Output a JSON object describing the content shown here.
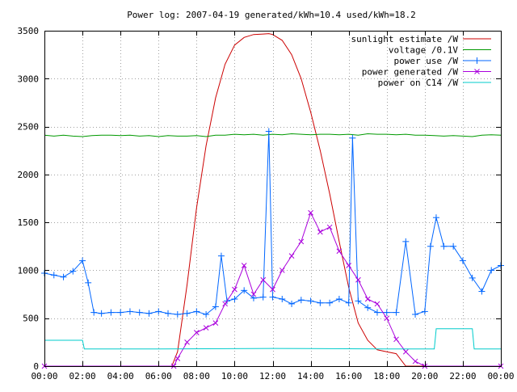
{
  "chart_data": {
    "type": "line",
    "title": "Power log: 2007-04-19 generated/kWh=10.4 used/kWh=18.2",
    "xlabel": "",
    "ylabel": "",
    "xlim": [
      0,
      24
    ],
    "ylim": [
      0,
      3500
    ],
    "grid": true,
    "legend_position": "top-right",
    "x_ticks": [
      {
        "v": 0,
        "label": "00:00"
      },
      {
        "v": 2,
        "label": "02:00"
      },
      {
        "v": 4,
        "label": "04:00"
      },
      {
        "v": 6,
        "label": "06:00"
      },
      {
        "v": 8,
        "label": "08:00"
      },
      {
        "v": 10,
        "label": "10:00"
      },
      {
        "v": 12,
        "label": "12:00"
      },
      {
        "v": 14,
        "label": "14:00"
      },
      {
        "v": 16,
        "label": "16:00"
      },
      {
        "v": 18,
        "label": "18:00"
      },
      {
        "v": 20,
        "label": "20:00"
      },
      {
        "v": 22,
        "label": "22:00"
      },
      {
        "v": 24,
        "label": "00:00"
      }
    ],
    "y_ticks": [
      {
        "v": 0,
        "label": "0"
      },
      {
        "v": 500,
        "label": "500"
      },
      {
        "v": 1000,
        "label": "1000"
      },
      {
        "v": 1500,
        "label": "1500"
      },
      {
        "v": 2000,
        "label": "2000"
      },
      {
        "v": 2500,
        "label": "2500"
      },
      {
        "v": 3000,
        "label": "3000"
      },
      {
        "v": 3500,
        "label": "3500"
      }
    ],
    "series": [
      {
        "name": "sunlight estimate /W",
        "color": "#cc0000",
        "marker": "none",
        "x": [
          0,
          6.7,
          7.0,
          7.5,
          8.0,
          8.5,
          9.0,
          9.5,
          10.0,
          10.5,
          11.0,
          11.5,
          11.8,
          12.0,
          12.5,
          13.0,
          13.5,
          14.0,
          14.5,
          15.0,
          15.5,
          16.0,
          16.5,
          17.0,
          17.5,
          18.0,
          18.5,
          19.0,
          24
        ],
        "y": [
          0,
          0,
          150,
          850,
          1650,
          2300,
          2800,
          3150,
          3350,
          3430,
          3460,
          3465,
          3470,
          3460,
          3400,
          3250,
          3000,
          2650,
          2250,
          1800,
          1300,
          820,
          450,
          270,
          170,
          150,
          130,
          0,
          0
        ]
      },
      {
        "name": "voltage /0.1V",
        "color": "#009900",
        "marker": "none",
        "x": [
          0,
          0.5,
          1.0,
          1.5,
          2.0,
          2.5,
          3.0,
          3.5,
          4.0,
          4.5,
          5.0,
          5.5,
          6.0,
          6.5,
          7.0,
          7.5,
          8.0,
          8.5,
          9.0,
          9.5,
          10.0,
          10.5,
          11.0,
          11.5,
          12.0,
          12.5,
          13.0,
          13.5,
          14.0,
          14.5,
          15.0,
          15.5,
          16.0,
          16.5,
          17.0,
          17.5,
          18.0,
          18.5,
          19.0,
          19.5,
          20.0,
          20.5,
          21.0,
          21.5,
          22.0,
          22.5,
          23.0,
          23.5,
          24.0
        ],
        "y": [
          2410,
          2400,
          2410,
          2400,
          2395,
          2405,
          2410,
          2410,
          2405,
          2410,
          2400,
          2405,
          2395,
          2405,
          2400,
          2400,
          2405,
          2395,
          2410,
          2410,
          2420,
          2415,
          2420,
          2410,
          2420,
          2415,
          2425,
          2420,
          2415,
          2420,
          2420,
          2415,
          2420,
          2410,
          2425,
          2420,
          2420,
          2415,
          2420,
          2410,
          2410,
          2405,
          2400,
          2405,
          2400,
          2395,
          2410,
          2415,
          2410
        ]
      },
      {
        "name": "power use /W",
        "color": "#0066ff",
        "marker": "plus",
        "x": [
          0,
          0.5,
          1.0,
          1.5,
          2.0,
          2.3,
          2.6,
          3.0,
          3.5,
          4.0,
          4.5,
          5.0,
          5.5,
          6.0,
          6.5,
          7.0,
          7.5,
          8.0,
          8.5,
          9.0,
          9.3,
          9.6,
          10.0,
          10.5,
          11.0,
          11.5,
          11.8,
          12.0,
          12.5,
          13.0,
          13.5,
          14.0,
          14.5,
          15.0,
          15.5,
          16.0,
          16.2,
          16.5,
          17.0,
          17.5,
          18.0,
          18.5,
          19.0,
          19.5,
          20.0,
          20.3,
          20.6,
          21.0,
          21.5,
          22.0,
          22.5,
          23.0,
          23.5,
          24.0
        ],
        "y": [
          970,
          950,
          930,
          990,
          1100,
          870,
          560,
          550,
          560,
          560,
          570,
          560,
          550,
          570,
          550,
          540,
          550,
          570,
          540,
          620,
          1150,
          680,
          700,
          790,
          710,
          720,
          2450,
          720,
          700,
          650,
          690,
          680,
          660,
          660,
          700,
          660,
          2380,
          680,
          610,
          560,
          560,
          560,
          1300,
          540,
          570,
          1250,
          1550,
          1250,
          1250,
          1100,
          920,
          780,
          1000,
          1050
        ]
      },
      {
        "name": "power generated /W",
        "color": "#aa00dd",
        "marker": "cross",
        "x": [
          0,
          6.8,
          7.0,
          7.5,
          8.0,
          8.5,
          9.0,
          9.5,
          10.0,
          10.5,
          11.0,
          11.5,
          12.0,
          12.5,
          13.0,
          13.5,
          14.0,
          14.5,
          15.0,
          15.5,
          16.0,
          16.5,
          17.0,
          17.5,
          18.0,
          18.5,
          19.0,
          19.5,
          20.0,
          24.0
        ],
        "y": [
          0,
          0,
          80,
          250,
          350,
          400,
          450,
          650,
          800,
          1050,
          750,
          900,
          800,
          1000,
          1150,
          1300,
          1600,
          1400,
          1450,
          1200,
          1050,
          900,
          700,
          650,
          500,
          280,
          150,
          50,
          0,
          0
        ]
      },
      {
        "name": "power on C14 /W",
        "color": "#00cccc",
        "marker": "none",
        "x": [
          0,
          2.0,
          2.1,
          6.0,
          12.0,
          18.0,
          20.5,
          20.6,
          22.5,
          22.6,
          24.0
        ],
        "y": [
          270,
          270,
          180,
          180,
          185,
          180,
          180,
          390,
          390,
          180,
          180
        ]
      }
    ]
  }
}
